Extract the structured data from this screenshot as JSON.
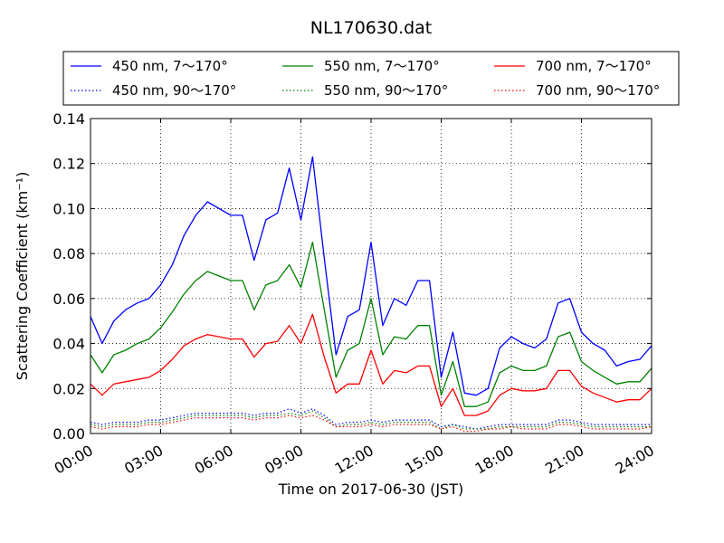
{
  "chart_data": {
    "type": "line",
    "title": "NL170630.dat",
    "xlabel": "Time on 2017-06-30 (JST)",
    "ylabel": "Scattering Coefficient (km⁻¹)",
    "xlim": [
      "00:00",
      "24:00"
    ],
    "ylim": [
      0,
      0.14
    ],
    "x_ticks": [
      "00:00",
      "03:00",
      "06:00",
      "09:00",
      "12:00",
      "15:00",
      "18:00",
      "21:00",
      "24:00"
    ],
    "y_ticks": [
      "0.00",
      "0.02",
      "0.04",
      "0.06",
      "0.08",
      "0.10",
      "0.12",
      "0.14"
    ],
    "grid": true,
    "legend_position": "top",
    "x": [
      "00:00",
      "00:30",
      "01:00",
      "01:30",
      "02:00",
      "02:30",
      "03:00",
      "03:30",
      "04:00",
      "04:30",
      "05:00",
      "05:30",
      "06:00",
      "06:30",
      "07:00",
      "07:30",
      "08:00",
      "08:30",
      "09:00",
      "09:30",
      "10:00",
      "10:30",
      "11:00",
      "11:30",
      "12:00",
      "12:30",
      "13:00",
      "13:30",
      "14:00",
      "14:30",
      "15:00",
      "15:30",
      "16:00",
      "16:30",
      "17:00",
      "17:30",
      "18:00",
      "18:30",
      "19:00",
      "19:30",
      "20:00",
      "20:30",
      "21:00",
      "21:30",
      "22:00",
      "22:30",
      "23:00",
      "23:30",
      "24:00"
    ],
    "series": [
      {
        "name": "450 nm, 7～170°",
        "color": "#0000ff",
        "style": "solid",
        "values": [
          0.052,
          0.04,
          0.05,
          0.055,
          0.058,
          0.06,
          0.066,
          0.075,
          0.088,
          0.097,
          0.103,
          0.1,
          0.097,
          0.097,
          0.077,
          0.095,
          0.098,
          0.118,
          0.095,
          0.123,
          0.078,
          0.035,
          0.052,
          0.055,
          0.085,
          0.048,
          0.06,
          0.057,
          0.068,
          0.068,
          0.025,
          0.045,
          0.018,
          0.017,
          0.02,
          0.038,
          0.043,
          0.04,
          0.038,
          0.042,
          0.058,
          0.06,
          0.045,
          0.04,
          0.037,
          0.03,
          0.032,
          0.033,
          0.039
        ]
      },
      {
        "name": "450 nm, 90～170°",
        "color": "#0000ff",
        "style": "dotted",
        "values": [
          0.005,
          0.004,
          0.005,
          0.005,
          0.005,
          0.006,
          0.006,
          0.007,
          0.008,
          0.009,
          0.009,
          0.009,
          0.009,
          0.009,
          0.008,
          0.009,
          0.009,
          0.011,
          0.009,
          0.011,
          0.008,
          0.004,
          0.005,
          0.005,
          0.006,
          0.005,
          0.006,
          0.006,
          0.006,
          0.006,
          0.003,
          0.004,
          0.003,
          0.002,
          0.003,
          0.004,
          0.004,
          0.004,
          0.004,
          0.004,
          0.006,
          0.006,
          0.005,
          0.004,
          0.004,
          0.004,
          0.004,
          0.004,
          0.004
        ]
      },
      {
        "name": "550 nm, 7～170°",
        "color": "#008000",
        "style": "solid",
        "values": [
          0.035,
          0.027,
          0.035,
          0.037,
          0.04,
          0.042,
          0.047,
          0.054,
          0.062,
          0.068,
          0.072,
          0.07,
          0.068,
          0.068,
          0.055,
          0.066,
          0.068,
          0.075,
          0.065,
          0.085,
          0.055,
          0.025,
          0.037,
          0.04,
          0.06,
          0.035,
          0.043,
          0.042,
          0.048,
          0.048,
          0.017,
          0.032,
          0.012,
          0.012,
          0.014,
          0.027,
          0.03,
          0.028,
          0.028,
          0.03,
          0.043,
          0.045,
          0.032,
          0.028,
          0.025,
          0.022,
          0.023,
          0.023,
          0.029
        ]
      },
      {
        "name": "550 nm, 90～170°",
        "color": "#008000",
        "style": "dotted",
        "values": [
          0.004,
          0.003,
          0.004,
          0.004,
          0.004,
          0.005,
          0.005,
          0.006,
          0.007,
          0.008,
          0.008,
          0.008,
          0.008,
          0.008,
          0.007,
          0.008,
          0.008,
          0.009,
          0.008,
          0.01,
          0.007,
          0.003,
          0.004,
          0.004,
          0.005,
          0.004,
          0.005,
          0.005,
          0.005,
          0.005,
          0.002,
          0.004,
          0.002,
          0.002,
          0.002,
          0.003,
          0.003,
          0.003,
          0.003,
          0.003,
          0.005,
          0.005,
          0.004,
          0.003,
          0.003,
          0.003,
          0.003,
          0.003,
          0.003
        ]
      },
      {
        "name": "700 nm, 7～170°",
        "color": "#ff0000",
        "style": "solid",
        "values": [
          0.022,
          0.017,
          0.022,
          0.023,
          0.024,
          0.025,
          0.028,
          0.033,
          0.039,
          0.042,
          0.044,
          0.043,
          0.042,
          0.042,
          0.034,
          0.04,
          0.041,
          0.048,
          0.04,
          0.053,
          0.034,
          0.018,
          0.022,
          0.022,
          0.037,
          0.022,
          0.028,
          0.027,
          0.03,
          0.03,
          0.012,
          0.02,
          0.008,
          0.008,
          0.01,
          0.017,
          0.02,
          0.019,
          0.019,
          0.02,
          0.028,
          0.028,
          0.021,
          0.018,
          0.016,
          0.014,
          0.015,
          0.015,
          0.02
        ]
      },
      {
        "name": "700 nm, 90～170°",
        "color": "#ff0000",
        "style": "dotted",
        "values": [
          0.003,
          0.002,
          0.003,
          0.003,
          0.003,
          0.004,
          0.004,
          0.005,
          0.006,
          0.007,
          0.007,
          0.007,
          0.007,
          0.007,
          0.006,
          0.007,
          0.007,
          0.008,
          0.007,
          0.008,
          0.006,
          0.003,
          0.003,
          0.003,
          0.004,
          0.003,
          0.004,
          0.004,
          0.004,
          0.004,
          0.002,
          0.003,
          0.001,
          0.001,
          0.002,
          0.002,
          0.003,
          0.002,
          0.002,
          0.002,
          0.004,
          0.004,
          0.003,
          0.002,
          0.002,
          0.002,
          0.002,
          0.002,
          0.003
        ]
      }
    ]
  }
}
